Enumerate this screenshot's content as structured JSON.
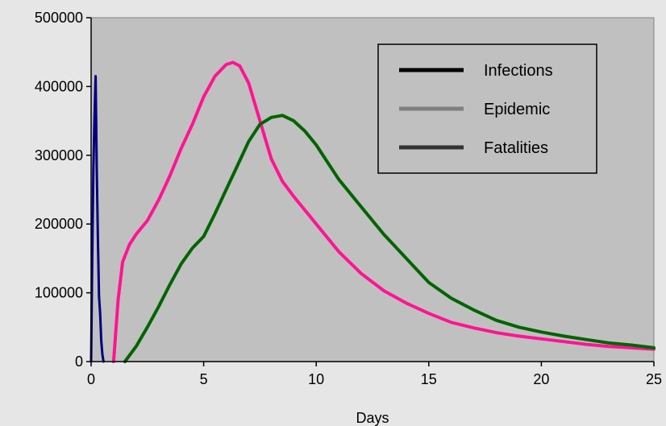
{
  "chart_data": {
    "type": "line",
    "xlabel": "Days",
    "ylabel": "",
    "xlim": [
      0,
      25
    ],
    "ylim": [
      0,
      500000
    ],
    "x_ticks": [
      0,
      5,
      10,
      15,
      20,
      25
    ],
    "y_ticks": [
      0,
      100000,
      200000,
      300000,
      400000,
      500000
    ],
    "grid": false,
    "plot_background": "#c0c0c0",
    "legend": {
      "position": "top-right",
      "entries": [
        {
          "name": "Infections",
          "color": "#000000"
        },
        {
          "name": "Epidemic",
          "color": "#808080"
        },
        {
          "name": "Fatalities",
          "color": "#333333"
        }
      ]
    },
    "series": [
      {
        "color": "#000080",
        "points": [
          [
            0.0,
            0
          ],
          [
            0.05,
            150000
          ],
          [
            0.1,
            280000
          ],
          [
            0.15,
            355000
          ],
          [
            0.2,
            415000
          ],
          [
            0.25,
            280000
          ],
          [
            0.3,
            180000
          ],
          [
            0.35,
            95000
          ],
          [
            0.4,
            70000
          ],
          [
            0.45,
            30000
          ],
          [
            0.5,
            10000
          ],
          [
            0.55,
            0
          ]
        ]
      },
      {
        "color": "#ff1493",
        "points": [
          [
            1.0,
            0
          ],
          [
            1.2,
            90000
          ],
          [
            1.4,
            145000
          ],
          [
            1.7,
            170000
          ],
          [
            2.0,
            185000
          ],
          [
            2.5,
            205000
          ],
          [
            3.0,
            235000
          ],
          [
            3.5,
            270000
          ],
          [
            4.0,
            310000
          ],
          [
            4.5,
            345000
          ],
          [
            5.0,
            385000
          ],
          [
            5.5,
            415000
          ],
          [
            6.0,
            432000
          ],
          [
            6.3,
            435000
          ],
          [
            6.6,
            430000
          ],
          [
            7.0,
            405000
          ],
          [
            7.5,
            350000
          ],
          [
            8.0,
            295000
          ],
          [
            8.5,
            262000
          ],
          [
            9.0,
            240000
          ],
          [
            10.0,
            200000
          ],
          [
            11.0,
            160000
          ],
          [
            12.0,
            128000
          ],
          [
            13.0,
            103000
          ],
          [
            14.0,
            85000
          ],
          [
            15.0,
            70000
          ],
          [
            16.0,
            57000
          ],
          [
            17.0,
            49000
          ],
          [
            18.0,
            42000
          ],
          [
            19.0,
            37000
          ],
          [
            20.0,
            33000
          ],
          [
            21.0,
            29000
          ],
          [
            22.0,
            25000
          ],
          [
            23.0,
            22000
          ],
          [
            24.0,
            20000
          ],
          [
            25.0,
            18000
          ]
        ]
      },
      {
        "color": "#006400",
        "points": [
          [
            1.5,
            0
          ],
          [
            2.0,
            22000
          ],
          [
            2.5,
            50000
          ],
          [
            3.0,
            80000
          ],
          [
            3.5,
            112000
          ],
          [
            4.0,
            142000
          ],
          [
            4.5,
            165000
          ],
          [
            5.0,
            182000
          ],
          [
            5.5,
            215000
          ],
          [
            6.0,
            250000
          ],
          [
            6.5,
            285000
          ],
          [
            7.0,
            320000
          ],
          [
            7.5,
            345000
          ],
          [
            8.0,
            355000
          ],
          [
            8.5,
            358000
          ],
          [
            9.0,
            350000
          ],
          [
            9.5,
            335000
          ],
          [
            10.0,
            315000
          ],
          [
            11.0,
            265000
          ],
          [
            12.0,
            225000
          ],
          [
            13.0,
            185000
          ],
          [
            14.0,
            150000
          ],
          [
            15.0,
            115000
          ],
          [
            16.0,
            92000
          ],
          [
            17.0,
            75000
          ],
          [
            18.0,
            60000
          ],
          [
            19.0,
            50000
          ],
          [
            20.0,
            43000
          ],
          [
            21.0,
            37000
          ],
          [
            22.0,
            32000
          ],
          [
            23.0,
            27000
          ],
          [
            24.0,
            24000
          ],
          [
            25.0,
            20000
          ]
        ]
      }
    ]
  }
}
